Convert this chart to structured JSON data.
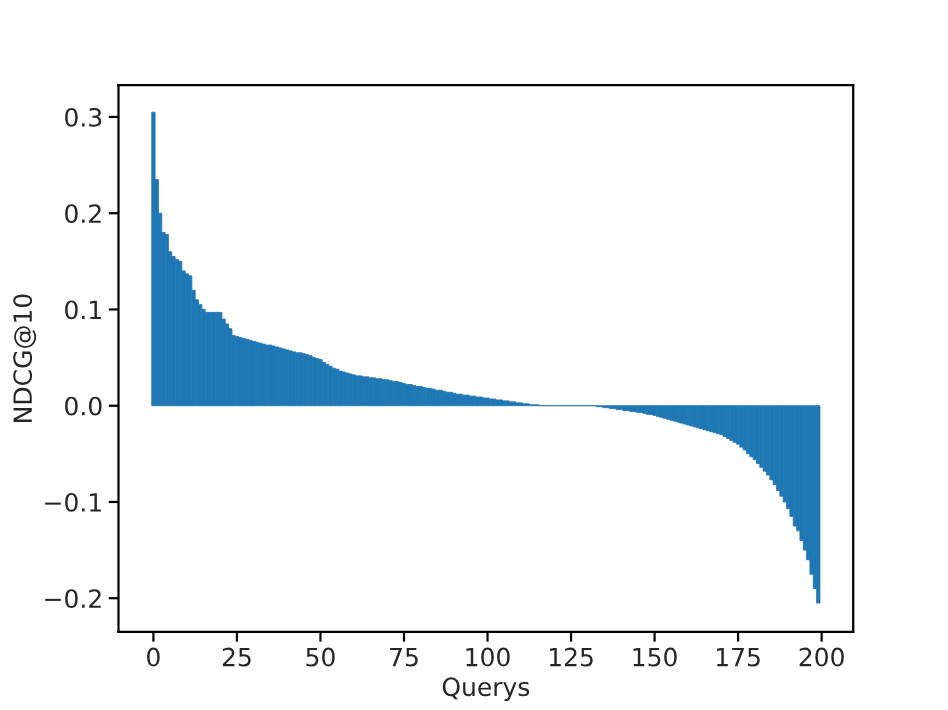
{
  "chart_data": {
    "type": "bar",
    "xlabel": "Querys",
    "ylabel": "NDCG@10",
    "color": "#1f77b4",
    "x": [
      0,
      1,
      2,
      3,
      4,
      5,
      6,
      7,
      8,
      9,
      10,
      11,
      12,
      13,
      14,
      15,
      16,
      17,
      18,
      19,
      20,
      21,
      22,
      23,
      24,
      25,
      26,
      27,
      28,
      29,
      30,
      31,
      32,
      33,
      34,
      35,
      36,
      37,
      38,
      39,
      40,
      41,
      42,
      43,
      44,
      45,
      46,
      47,
      48,
      49,
      50,
      51,
      52,
      53,
      54,
      55,
      56,
      57,
      58,
      59,
      60,
      61,
      62,
      63,
      64,
      65,
      66,
      67,
      68,
      69,
      70,
      71,
      72,
      73,
      74,
      75,
      76,
      77,
      78,
      79,
      80,
      81,
      82,
      83,
      84,
      85,
      86,
      87,
      88,
      89,
      90,
      91,
      92,
      93,
      94,
      95,
      96,
      97,
      98,
      99,
      100,
      101,
      102,
      103,
      104,
      105,
      106,
      107,
      108,
      109,
      110,
      111,
      112,
      113,
      114,
      115,
      116,
      117,
      118,
      119,
      120,
      121,
      122,
      123,
      124,
      125,
      126,
      127,
      128,
      129,
      130,
      131,
      132,
      133,
      134,
      135,
      136,
      137,
      138,
      139,
      140,
      141,
      142,
      143,
      144,
      145,
      146,
      147,
      148,
      149,
      150,
      151,
      152,
      153,
      154,
      155,
      156,
      157,
      158,
      159,
      160,
      161,
      162,
      163,
      164,
      165,
      166,
      167,
      168,
      169,
      170,
      171,
      172,
      173,
      174,
      175,
      176,
      177,
      178,
      179,
      180,
      181,
      182,
      183,
      184,
      185,
      186,
      187,
      188,
      189,
      190,
      191,
      192,
      193,
      194,
      195,
      196,
      197,
      198,
      199
    ],
    "values": [
      0.305,
      0.235,
      0.2,
      0.18,
      0.178,
      0.16,
      0.155,
      0.152,
      0.15,
      0.14,
      0.137,
      0.135,
      0.12,
      0.11,
      0.105,
      0.1,
      0.097,
      0.097,
      0.097,
      0.097,
      0.097,
      0.09,
      0.085,
      0.08,
      0.073,
      0.072,
      0.071,
      0.07,
      0.069,
      0.068,
      0.067,
      0.066,
      0.065,
      0.064,
      0.063,
      0.063,
      0.062,
      0.061,
      0.06,
      0.059,
      0.058,
      0.057,
      0.056,
      0.055,
      0.055,
      0.054,
      0.053,
      0.052,
      0.05,
      0.049,
      0.048,
      0.045,
      0.043,
      0.041,
      0.039,
      0.038,
      0.036,
      0.035,
      0.034,
      0.033,
      0.032,
      0.031,
      0.031,
      0.03,
      0.03,
      0.029,
      0.029,
      0.028,
      0.028,
      0.027,
      0.027,
      0.026,
      0.025,
      0.025,
      0.024,
      0.023,
      0.022,
      0.022,
      0.021,
      0.02,
      0.02,
      0.019,
      0.018,
      0.018,
      0.017,
      0.016,
      0.016,
      0.015,
      0.014,
      0.014,
      0.013,
      0.012,
      0.012,
      0.011,
      0.011,
      0.01,
      0.01,
      0.009,
      0.009,
      0.008,
      0.008,
      0.007,
      0.007,
      0.006,
      0.006,
      0.005,
      0.005,
      0.004,
      0.004,
      0.003,
      0.003,
      0.002,
      0.002,
      0.001,
      0.001,
      0.001,
      0,
      0,
      0,
      0,
      0,
      0,
      0,
      0,
      0,
      0,
      0,
      0,
      0,
      0,
      0,
      0,
      0,
      -0.001,
      -0.001,
      -0.002,
      -0.002,
      -0.003,
      -0.003,
      -0.004,
      -0.004,
      -0.005,
      -0.005,
      -0.006,
      -0.006,
      -0.007,
      -0.007,
      -0.008,
      -0.009,
      -0.009,
      -0.01,
      -0.011,
      -0.012,
      -0.013,
      -0.014,
      -0.015,
      -0.016,
      -0.017,
      -0.018,
      -0.019,
      -0.02,
      -0.021,
      -0.022,
      -0.023,
      -0.024,
      -0.025,
      -0.026,
      -0.027,
      -0.028,
      -0.029,
      -0.03,
      -0.032,
      -0.034,
      -0.036,
      -0.038,
      -0.04,
      -0.043,
      -0.046,
      -0.05,
      -0.053,
      -0.056,
      -0.06,
      -0.064,
      -0.068,
      -0.072,
      -0.077,
      -0.082,
      -0.088,
      -0.094,
      -0.1,
      -0.107,
      -0.115,
      -0.125,
      -0.13,
      -0.14,
      -0.15,
      -0.16,
      -0.175,
      -0.19,
      -0.205
    ],
    "xlim": [
      -10.45,
      209.45
    ],
    "ylim": [
      -0.235,
      0.333
    ],
    "xticks": [
      0,
      25,
      50,
      75,
      100,
      125,
      150,
      175,
      200
    ],
    "yticks": [
      {
        "value": -0.2,
        "label": "−0.2"
      },
      {
        "value": -0.1,
        "label": "−0.1"
      },
      {
        "value": 0,
        "label": "0.0"
      },
      {
        "value": 0.1,
        "label": "0.1"
      },
      {
        "value": 0.2,
        "label": "0.2"
      },
      {
        "value": 0.3,
        "label": "0.3"
      }
    ],
    "grid": false
  }
}
